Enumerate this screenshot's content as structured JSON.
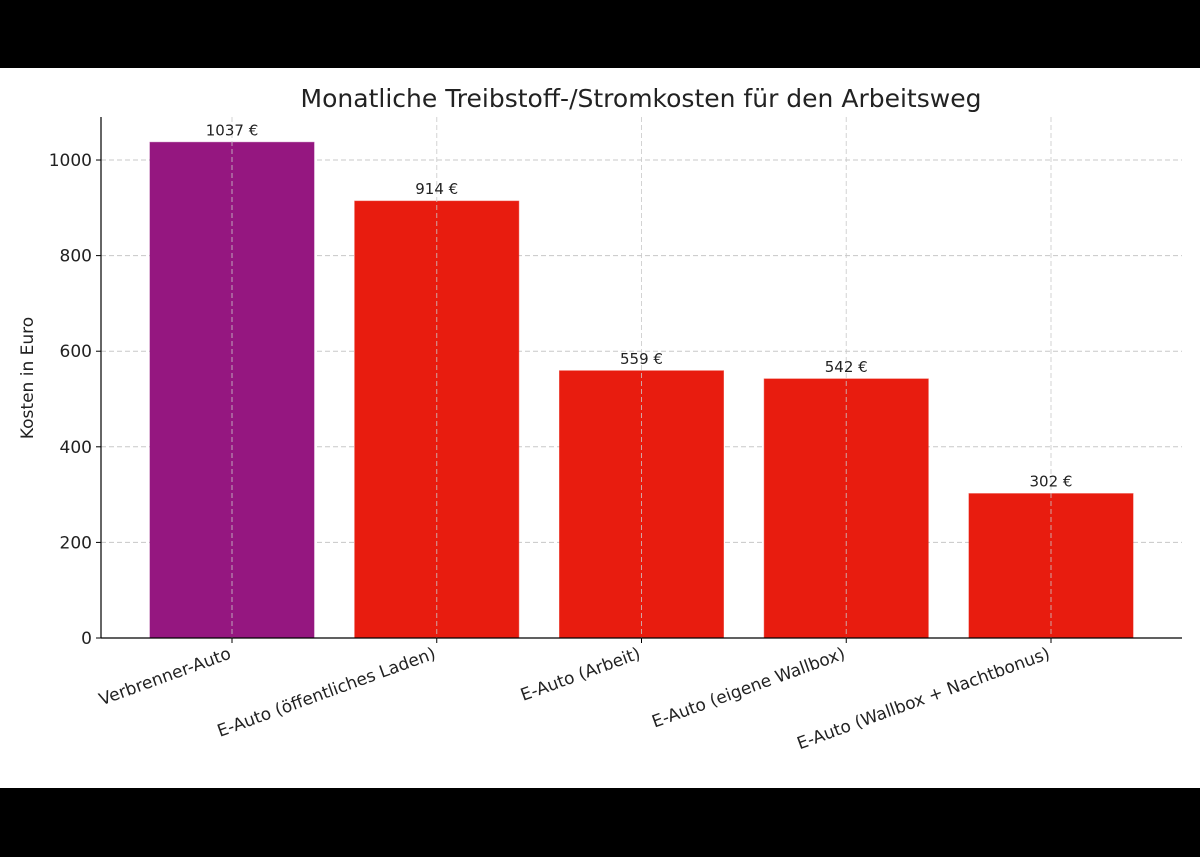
{
  "chart_data": {
    "type": "bar",
    "title": "Monatliche Treibstoff-/Stromkosten für den Arbeitsweg",
    "xlabel": "",
    "ylabel": "Kosten in Euro",
    "categories": [
      "Verbrenner-Auto",
      "E-Auto (öffentliches Laden)",
      "E-Auto (Arbeit)",
      "E-Auto (eigene Wallbox)",
      "E-Auto (Wallbox + Nachtbonus)"
    ],
    "values": [
      1037,
      914,
      559,
      542,
      302
    ],
    "data_labels": [
      "1037 €",
      "914 €",
      "559 €",
      "542 €",
      "302 €"
    ],
    "colors": [
      "#951780",
      "#e81c0f",
      "#e81c0f",
      "#e81c0f",
      "#e81c0f"
    ],
    "yticks": [
      0,
      200,
      400,
      600,
      800,
      1000
    ],
    "ylim": [
      0,
      1090
    ],
    "grid": true,
    "grid_style": "dashed",
    "legend": "none"
  }
}
